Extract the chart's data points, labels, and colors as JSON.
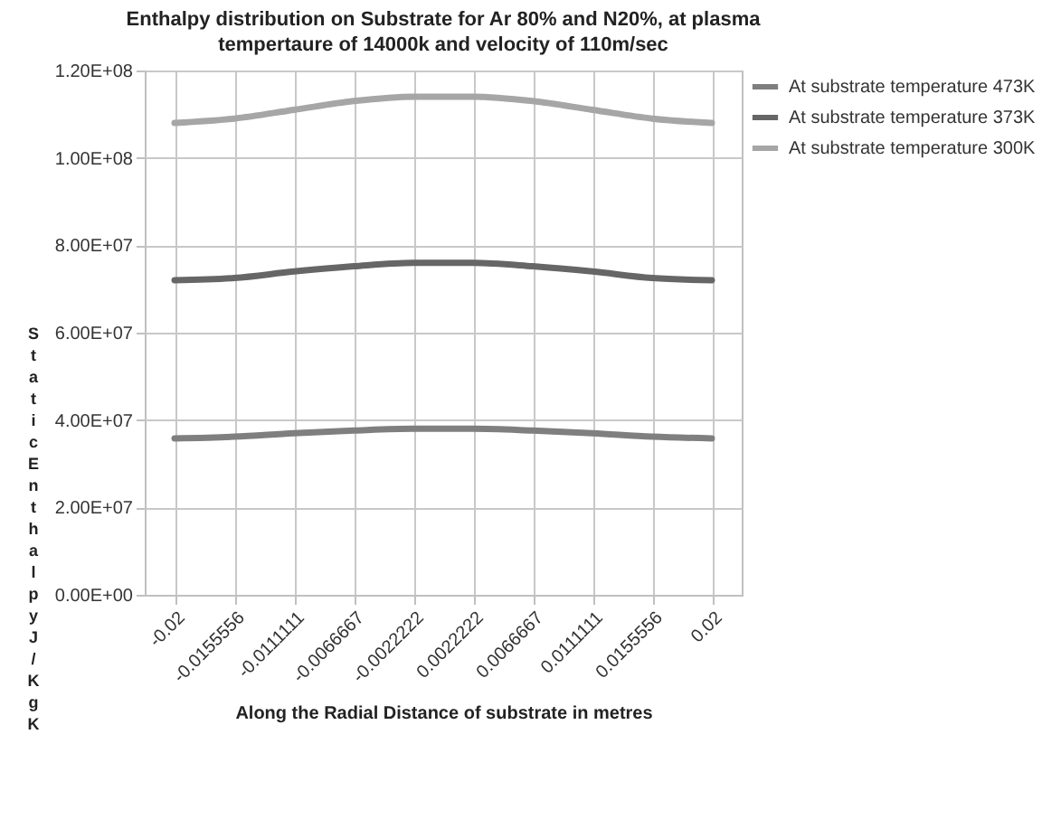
{
  "chart_data": {
    "type": "line",
    "title": "Enthalpy distribution on Substrate for Ar 80% and N20%, at plasma tempertaure of 14000k and velocity of 110m/sec",
    "xlabel": "Along the Radial Distance of  substrate in metres",
    "ylabel": "Static Enthalpy J/KgK",
    "categories": [
      "-0.02",
      "-0.0155556",
      "-0.0111111",
      "-0.0066667",
      "-0.0022222",
      "0.0022222",
      "0.0066667",
      "0.0111111",
      "0.0155556",
      "0.02"
    ],
    "series": [
      {
        "name": "At substrate temperature 473K",
        "color": "#7f7f7f",
        "values": [
          35800000,
          36200000,
          37000000,
          37600000,
          38000000,
          38000000,
          37600000,
          37000000,
          36200000,
          35800000
        ]
      },
      {
        "name": "At substrate temperature 373K",
        "color": "#666666",
        "values": [
          72000000,
          72500000,
          74000000,
          75200000,
          76000000,
          76000000,
          75200000,
          74000000,
          72500000,
          72000000
        ]
      },
      {
        "name": "At substrate temperature 300K",
        "color": "#a6a6a6",
        "values": [
          108000000,
          109000000,
          111000000,
          113000000,
          114000000,
          114000000,
          113000000,
          111000000,
          109000000,
          108000000
        ]
      }
    ],
    "ylim": [
      0,
      120000000
    ],
    "yticks": [
      {
        "value": 0,
        "label": "0.00E+00"
      },
      {
        "value": 20000000,
        "label": "2.00E+07"
      },
      {
        "value": 40000000,
        "label": "4.00E+07"
      },
      {
        "value": 60000000,
        "label": "6.00E+07"
      },
      {
        "value": 80000000,
        "label": "8.00E+07"
      },
      {
        "value": 100000000,
        "label": "1.00E+08"
      },
      {
        "value": 120000000,
        "label": "1.20E+08"
      }
    ],
    "grid": true,
    "legend": "right"
  }
}
